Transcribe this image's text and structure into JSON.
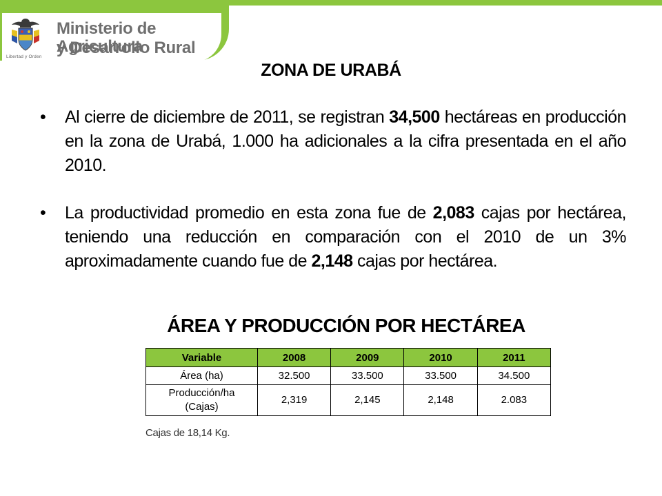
{
  "colors": {
    "accent_green": "#8cc63e",
    "table_header_bg": "#8cc63e",
    "ministry_text": "#6f6f6f"
  },
  "header": {
    "ministry_line1": "Ministerio de Agricultura",
    "ministry_line2": "y Desarrollo Rural",
    "crest_caption": "Libertad y Orden",
    "crest_icon": "colombia-coat-of-arms-icon"
  },
  "title": "ZONA DE URABÁ",
  "bullets": [
    {
      "pre": "Al cierre de diciembre de 2011, se registran ",
      "bold": "34,500",
      "post": " hectáreas en producción en la zona de Urabá, 1.000 ha adicionales a la cifra presentada en el año 2010."
    },
    {
      "pre": "La productividad promedio en esta zona fue de ",
      "bold": "2,083",
      "mid": " cajas por hectárea, teniendo una reducción en comparación con el 2010 de un 3% aproximadamente cuando fue de ",
      "bold2": "2,148",
      "post": " cajas por hectárea."
    }
  ],
  "bullet_mark": "•",
  "table": {
    "title": "ÁREA Y PRODUCCIÓN POR HECTÁREA",
    "headers": [
      "Variable",
      "2008",
      "2009",
      "2010",
      "2011"
    ],
    "rows": [
      [
        "Área (ha)",
        "32.500",
        "33.500",
        "33.500",
        "34.500"
      ],
      [
        "Producción/ha (Cajas)",
        "2,319",
        "2,145",
        "2,148",
        "2.083"
      ]
    ],
    "row2_label_line1": "Producción/ha",
    "row2_label_line2": "(Cajas)"
  },
  "footnote": "Cajas de 18,14 Kg."
}
